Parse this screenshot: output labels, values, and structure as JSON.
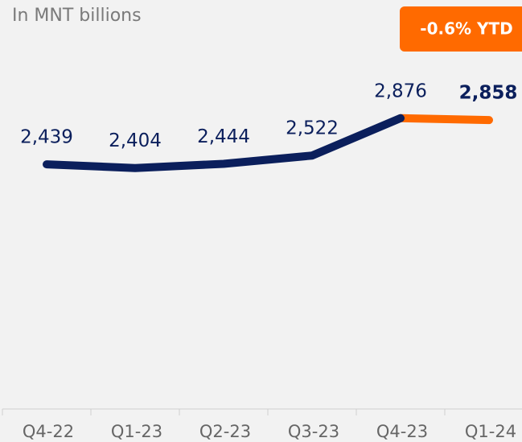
{
  "chart_data": {
    "type": "line",
    "subtitle": "In MNT billions",
    "annotation": "-0.6% YTD",
    "categories": [
      "Q4-22",
      "Q1-23",
      "Q2-23",
      "Q3-23",
      "Q4-23",
      "Q1-24"
    ],
    "values": [
      2439,
      2404,
      2444,
      2522,
      2876,
      2858
    ],
    "value_labels": [
      "2,439",
      "2,404",
      "2,444",
      "2,522",
      "2,876",
      "2,858"
    ],
    "color": "#0b1f5c",
    "last_segment_color": "#ff6a00",
    "ylim": [
      260,
      3690
    ]
  }
}
